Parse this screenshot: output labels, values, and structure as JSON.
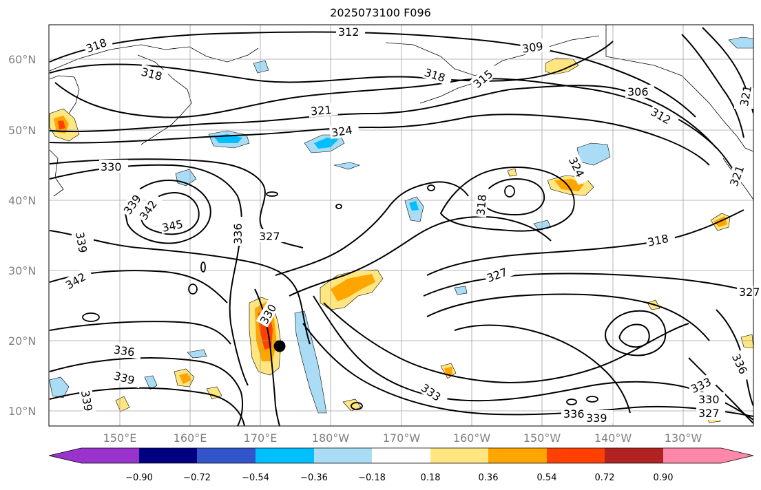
{
  "title": "2025073100 F096",
  "lat_labels": [
    "60°N",
    "50°N",
    "40°N",
    "30°N",
    "20°N",
    "10°N"
  ],
  "lon_labels": [
    "150°E",
    "160°E",
    "170°E",
    "180°W",
    "170°W",
    "160°W",
    "150°W",
    "140°W",
    "130°W"
  ],
  "contour_labels": [
    "318",
    "318",
    "312",
    "309",
    "318",
    "315",
    "306",
    "321",
    "324",
    "312",
    "321",
    "330",
    "339",
    "342",
    "345",
    "336",
    "327",
    "318",
    "324",
    "327",
    "318",
    "339",
    "342",
    "330",
    "336",
    "339",
    "339",
    "333",
    "336",
    "339",
    "333",
    "330",
    "327",
    "336",
    "321",
    "327"
  ],
  "colorbar": {
    "ticks": [
      "−0.90",
      "−0.72",
      "−0.54",
      "−0.36",
      "−0.18",
      "0.18",
      "0.36",
      "0.54",
      "0.72",
      "0.90"
    ],
    "colors": [
      "#9933cc",
      "#000080",
      "#3355cc",
      "#00bfff",
      "#aadcf5",
      "#ffffff",
      "#ffe680",
      "#ffa500",
      "#ff4000",
      "#b22222",
      "#ff88aa"
    ]
  }
}
